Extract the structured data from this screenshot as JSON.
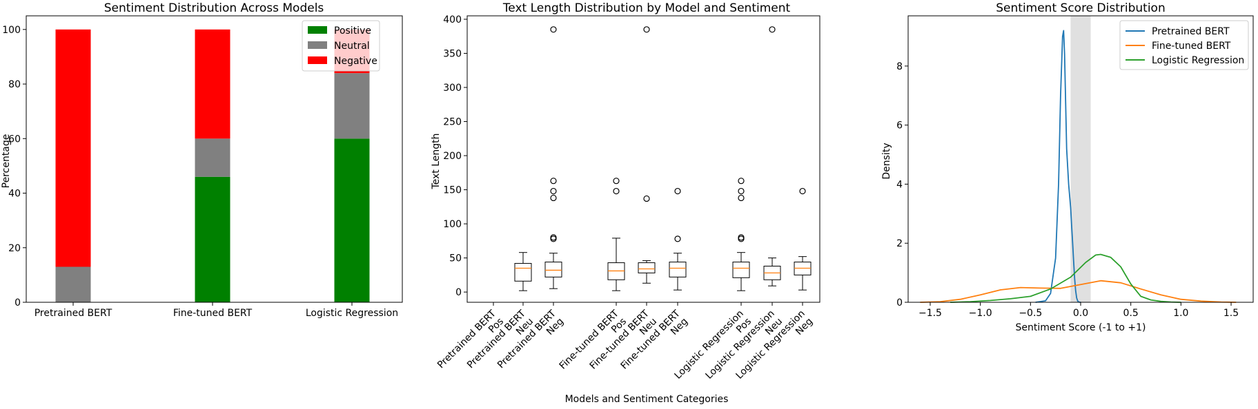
{
  "chart_data": [
    {
      "type": "bar",
      "stacked": true,
      "title": "Sentiment Distribution Across Models",
      "xlabel": "",
      "ylabel": "Percentage",
      "ylim": [
        0,
        105
      ],
      "yticks": [
        0,
        20,
        40,
        60,
        80,
        100
      ],
      "categories": [
        "Pretrained BERT",
        "Fine-tuned BERT",
        "Logistic Regression"
      ],
      "series": [
        {
          "name": "Positive",
          "color": "#008000",
          "values": [
            0,
            46,
            60
          ]
        },
        {
          "name": "Neutral",
          "color": "#808080",
          "values": [
            13,
            14,
            24
          ]
        },
        {
          "name": "Negative",
          "color": "#ff0000",
          "values": [
            87,
            40,
            16
          ]
        }
      ],
      "legend_position": "top-right"
    },
    {
      "type": "box",
      "title": "Text Length Distribution by Model and Sentiment",
      "xlabel": "Models and Sentiment Categories",
      "ylabel": "Text Length",
      "ylim": [
        -15,
        405
      ],
      "yticks": [
        0,
        50,
        100,
        150,
        200,
        250,
        300,
        350,
        400
      ],
      "categories": [
        "Pretrained BERT\nPos",
        "Pretrained BERT\nNeu",
        "Pretrained BERT\nNeg",
        "Fine-tuned BERT\nPos",
        "Fine-tuned BERT\nNeu",
        "Fine-tuned BERT\nNeg",
        "Logistic Regression\nPos",
        "Logistic Regression\nNeu",
        "Logistic Regression\nNeg"
      ],
      "boxes": [
        null,
        {
          "whislo": 2,
          "q1": 16,
          "med": 35,
          "q3": 42,
          "whishi": 58,
          "fliers": []
        },
        {
          "whislo": 5,
          "q1": 22,
          "med": 32,
          "q3": 44,
          "whishi": 57,
          "fliers": [
            78,
            80,
            138,
            148,
            163,
            385
          ]
        },
        {
          "whislo": 2,
          "q1": 18,
          "med": 31,
          "q3": 43,
          "whishi": 79,
          "fliers": [
            148,
            163
          ]
        },
        {
          "whislo": 13,
          "q1": 28,
          "med": 34,
          "q3": 43,
          "whishi": 46,
          "fliers": [
            137,
            385
          ]
        },
        {
          "whislo": 3,
          "q1": 22,
          "med": 35,
          "q3": 44,
          "whishi": 57,
          "fliers": [
            78,
            148
          ]
        },
        {
          "whislo": 2,
          "q1": 21,
          "med": 35,
          "q3": 44,
          "whishi": 58,
          "fliers": [
            78,
            80,
            138,
            148,
            163
          ]
        },
        {
          "whislo": 9,
          "q1": 18,
          "med": 28,
          "q3": 38,
          "whishi": 50,
          "fliers": [
            385
          ]
        },
        {
          "whislo": 3,
          "q1": 25,
          "med": 35,
          "q3": 44,
          "whishi": 52,
          "fliers": [
            148
          ]
        }
      ],
      "box_color": "#000000",
      "median_color": "#ff7f0e"
    },
    {
      "type": "line",
      "title": "Sentiment Score Distribution",
      "xlabel": "Sentiment Score (-1 to +1)",
      "ylabel": "Density",
      "xlim": [
        -1.72,
        1.72
      ],
      "ylim": [
        0,
        9.7
      ],
      "xticks": [
        "−1.5",
        "−1.0",
        "−0.5",
        "0.0",
        "0.5",
        "1.0",
        "1.5"
      ],
      "yticks": [
        0,
        2,
        4,
        6,
        8
      ],
      "shaded_band": {
        "from": -0.1,
        "to": 0.1,
        "color": "#e0e0e0"
      },
      "series": [
        {
          "name": "Pretrained BERT",
          "color": "#1f77b4",
          "x": [
            -0.45,
            -0.35,
            -0.3,
            -0.25,
            -0.22,
            -0.2,
            -0.18,
            -0.17,
            -0.16,
            -0.15,
            -0.14,
            -0.12,
            -0.1,
            -0.09,
            -0.08,
            -0.07,
            -0.06,
            -0.05,
            -0.04,
            -0.03,
            -0.02,
            0.0
          ],
          "y": [
            0.0,
            0.05,
            0.3,
            1.5,
            4.0,
            7.0,
            9.0,
            9.2,
            8.4,
            6.8,
            5.2,
            4.0,
            3.2,
            2.6,
            2.0,
            1.4,
            0.8,
            0.4,
            0.15,
            0.05,
            0.01,
            0.0
          ]
        },
        {
          "name": "Fine-tuned BERT",
          "color": "#ff7f0e",
          "x": [
            -1.6,
            -1.4,
            -1.2,
            -1.0,
            -0.8,
            -0.6,
            -0.4,
            -0.2,
            0.0,
            0.2,
            0.4,
            0.6,
            0.8,
            1.0,
            1.2,
            1.4,
            1.55
          ],
          "y": [
            0.0,
            0.02,
            0.1,
            0.25,
            0.42,
            0.5,
            0.48,
            0.47,
            0.6,
            0.73,
            0.66,
            0.45,
            0.25,
            0.1,
            0.04,
            0.01,
            0.0
          ]
        },
        {
          "name": "Logistic Regression",
          "color": "#2ca02c",
          "x": [
            -1.3,
            -1.1,
            -0.9,
            -0.7,
            -0.5,
            -0.3,
            -0.1,
            0.05,
            0.15,
            0.2,
            0.3,
            0.4,
            0.5,
            0.6,
            0.7,
            0.8,
            0.9,
            1.0
          ],
          "y": [
            0.0,
            0.02,
            0.06,
            0.12,
            0.2,
            0.45,
            0.85,
            1.35,
            1.6,
            1.62,
            1.52,
            1.2,
            0.62,
            0.2,
            0.08,
            0.03,
            0.01,
            0.0
          ]
        }
      ],
      "legend_position": "top-right"
    }
  ]
}
